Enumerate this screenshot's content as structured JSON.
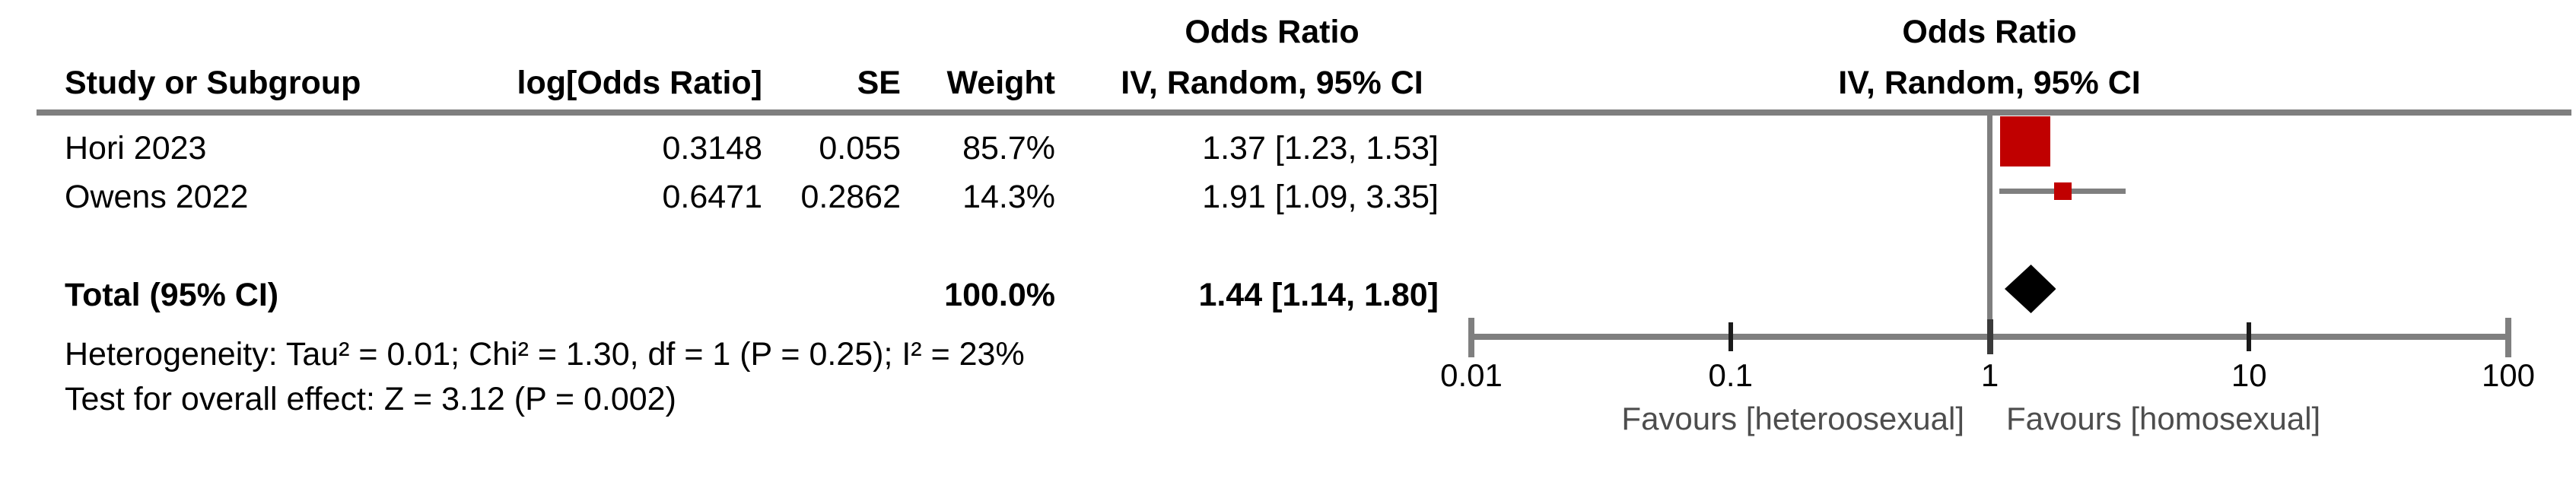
{
  "header": {
    "col_study": "Study or Subgroup",
    "col_log_or": "log[Odds Ratio]",
    "col_se": "SE",
    "col_weight": "Weight",
    "col_or_title": "Odds Ratio",
    "col_or_sub": "IV, Random, 95% CI",
    "plot_title": "Odds Ratio",
    "plot_sub": "IV, Random, 95% CI"
  },
  "footer": {
    "heterogeneity": "Heterogeneity: Tau² = 0.01; Chi² = 1.30, df = 1 (P = 0.25); I² = 23%",
    "overall_effect": "Test for overall effect: Z = 3.12 (P = 0.002)"
  },
  "chart_data": {
    "type": "forest",
    "effect_measure": "Odds Ratio",
    "model": "IV, Random, 95% CI",
    "x_axis": {
      "scale": "log",
      "ticks": [
        0.01,
        0.1,
        1,
        10,
        100
      ],
      "tick_labels": [
        "0.01",
        "0.1",
        "1",
        "10",
        "100"
      ]
    },
    "studies": [
      {
        "name": "Hori 2023",
        "log_or": "0.3148",
        "se": "0.055",
        "weight": "85.7%",
        "weight_pct": 85.7,
        "or": 1.37,
        "ci_low": 1.23,
        "ci_high": 1.53,
        "ci_text": "1.37 [1.23, 1.53]"
      },
      {
        "name": "Owens 2022",
        "log_or": "0.6471",
        "se": "0.2862",
        "weight": "14.3%",
        "weight_pct": 14.3,
        "or": 1.91,
        "ci_low": 1.09,
        "ci_high": 3.35,
        "ci_text": "1.91 [1.09, 3.35]"
      }
    ],
    "total": {
      "label": "Total (95% CI)",
      "weight": "100.0%",
      "or": 1.44,
      "ci_low": 1.14,
      "ci_high": 1.8,
      "ci_text": "1.44 [1.14, 1.80]"
    },
    "favours_left": "Favours [heteroosexual]",
    "favours_right": "Favours [homosexual]"
  },
  "colors": {
    "marker_red": "#c00000",
    "line_gray": "#7f7f7f",
    "tick_black": "#1a1a1a",
    "center_tick": "#3a3a3a",
    "diamond_black": "#000000",
    "favours_gray": "#4d4d4d"
  }
}
